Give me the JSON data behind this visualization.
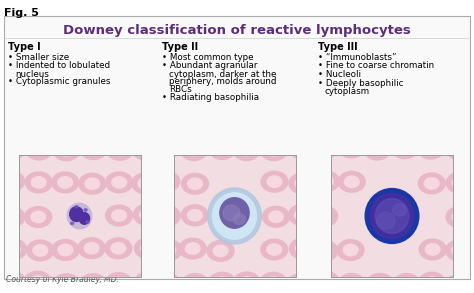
{
  "fig_label": "Fig. 5",
  "title": "Downey classification of reactive lymphocytes",
  "background_color": "#ffffff",
  "title_color": "#5c2d7e",
  "title_fontsize": 9.5,
  "fig_label_fontsize": 8,
  "text_fontsize": 6.3,
  "header_fontsize": 7,
  "courtesy_text": "Courtesy of Kyle Bradley, MD.",
  "columns": [
    {
      "header": "Type I",
      "bullets": [
        "Smaller size",
        "Indented to lobulated\nnucleus",
        "Cytoplasmic granules"
      ]
    },
    {
      "header": "Type II",
      "bullets": [
        "Most common type",
        "Abundant agranular\ncytoplasm, darker at the\nperiphery, molds around\nRBCs",
        "Radiating basophilia"
      ]
    },
    {
      "header": "Type III",
      "bullets": [
        "“Immunoblasts”",
        "Fine to coarse chromatin",
        "Nucleoli",
        "Deeply basophilic\ncytoplasm"
      ]
    }
  ],
  "bg_pink": "#f2dde2",
  "rbc_outer": "#e8b8c8",
  "rbc_inner": "#f5d8e0",
  "cell1_cyto": "#c8b8d8",
  "cell1_nuc": "#5030a0",
  "cell2_cyto_light": "#d0e8f8",
  "cell2_nuc": "#7060a8",
  "cell3_cyto": "#1838a8",
  "cell3_nuc": "#4030a0",
  "cell3_nuc_detail": "#6858b8"
}
